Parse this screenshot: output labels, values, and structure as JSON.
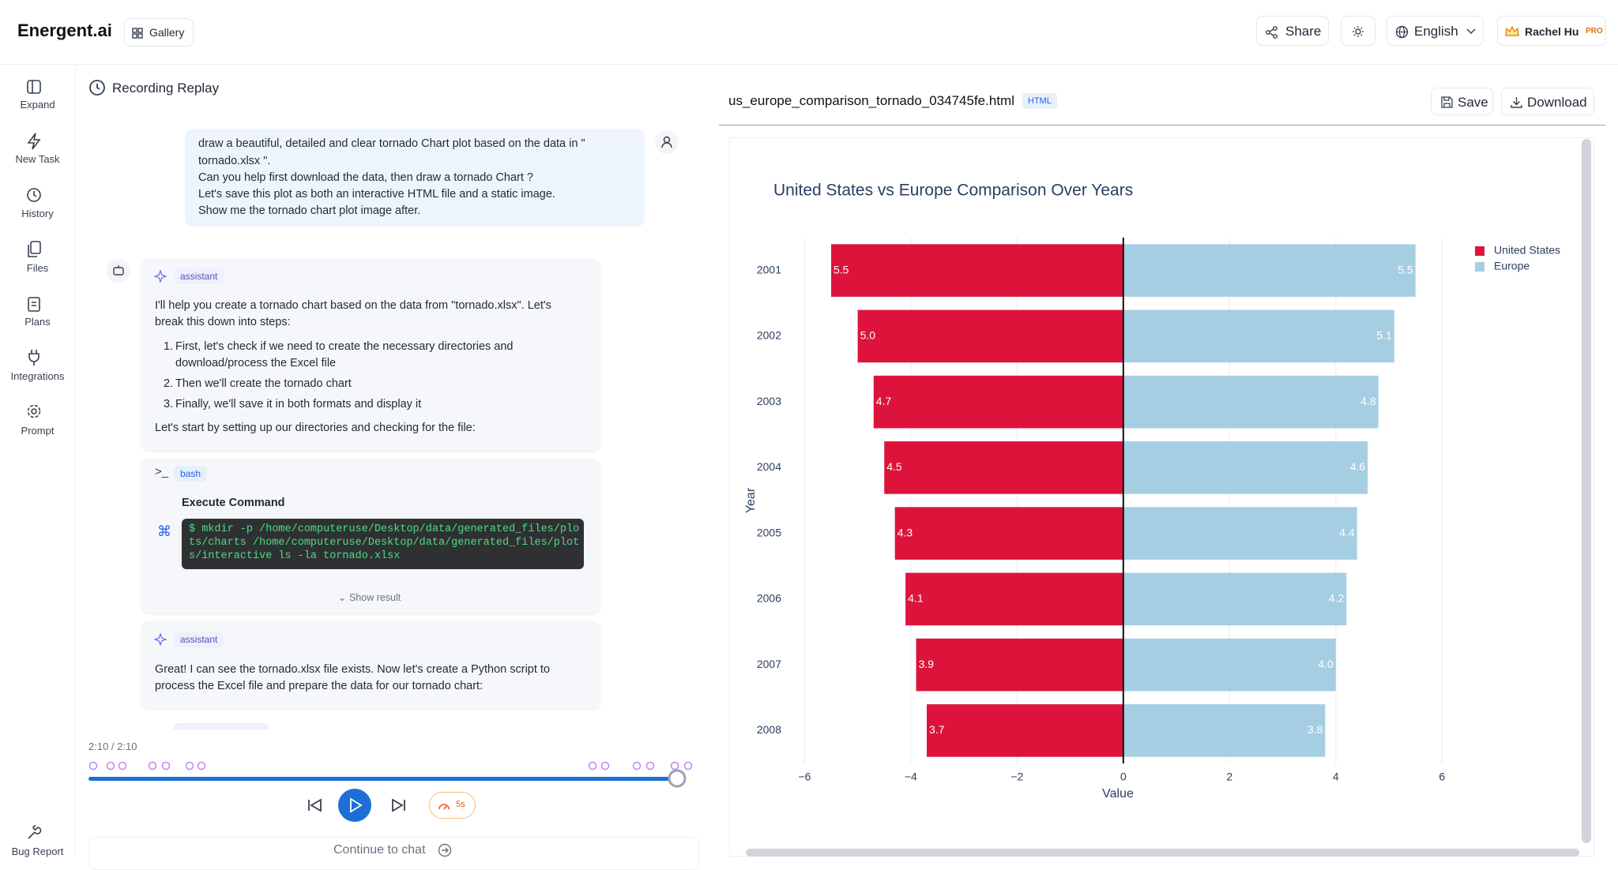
{
  "header": {
    "brand": "Energent.ai",
    "gallery": "Gallery",
    "share": "Share",
    "language": "English",
    "user": "Rachel Hu",
    "badge": "PRO"
  },
  "sidebar": {
    "items": [
      "Expand",
      "New Task",
      "History",
      "Files",
      "Plans",
      "Integrations",
      "Prompt"
    ],
    "bug_report": "Bug Report"
  },
  "replay": {
    "title": "Recording Replay",
    "user_message": [
      "draw a beautiful, detailed and clear tornado Chart plot based on the data in \"",
      "tornado.xlsx \".",
      "Can you help first download the data, then draw a tornado Chart ?",
      "Let's save this plot as both an interactive HTML file and a static image.",
      "Show me the tornado chart plot image after."
    ],
    "assistant_1": {
      "tag": "assistant",
      "intro": [
        "I'll help you create a tornado chart based on the data from \"tornado.xlsx\". Let's",
        "break this down into steps:"
      ],
      "steps": [
        [
          "1.",
          "First, let's check if we need to create the necessary directories and"
        ],
        [
          "",
          "download/process the Excel file"
        ],
        [
          "2.",
          "Then we'll create the tornado chart"
        ],
        [
          "3.",
          "Finally, we'll save it in both formats and display it"
        ]
      ],
      "outro": "Let's start by setting up our directories and checking for the file:"
    },
    "tool": {
      "tag": "bash",
      "title": "Execute Command",
      "command": [
        "$ mkdir -p /home/computeruse/Desktop/data/generated_files/plo",
        "ts/charts /home/computeruse/Desktop/data/generated_files/plot",
        "s/interactive ls -la tornado.xlsx"
      ],
      "toggle": "Show result"
    },
    "assistant_2": {
      "tag": "assistant",
      "text": [
        "Great! I can see the tornado.xlsx file exists. Now let's create a Python script to",
        "process the Excel file and prepare the data for our tornado chart:"
      ]
    },
    "time": "2:10 / 2:10",
    "speed": "5s",
    "continue": "Continue to chat"
  },
  "file": {
    "name": "us_europe_comparison_tornado_034745fe.html",
    "kind": "HTML",
    "save": "Save",
    "download": "Download"
  },
  "chart_data": {
    "type": "bar",
    "orientation": "horizontal",
    "title": "United States vs Europe Comparison Over Years",
    "x_label": "Value",
    "y_label": "Year",
    "categories": [
      "2001",
      "2002",
      "2003",
      "2004",
      "2005",
      "2006",
      "2007",
      "2008"
    ],
    "series": [
      {
        "name": "United States",
        "color": "#dc143c",
        "values": [
          -5.5,
          -5.0,
          -4.7,
          -4.5,
          -4.3,
          -4.1,
          -3.9,
          -3.7
        ],
        "value_labels": [
          "5.5",
          "5.0",
          "4.7",
          "4.5",
          "4.3",
          "4.1",
          "3.9",
          "3.7"
        ]
      },
      {
        "name": "Europe",
        "color": "#a6cee3",
        "values": [
          5.5,
          5.1,
          4.8,
          4.6,
          4.4,
          4.2,
          4.0,
          3.8
        ],
        "value_labels": [
          "5.5",
          "5.1",
          "4.8",
          "4.6",
          "4.4",
          "4.2",
          "4.0",
          "3.8"
        ]
      }
    ],
    "xlim": [
      -6.08,
      6.04
    ],
    "xticks": [
      {
        "value": -6,
        "label": "−6"
      },
      {
        "value": -4,
        "label": "−4"
      },
      {
        "value": -2,
        "label": "−2"
      },
      0,
      2,
      4,
      6
    ],
    "grid": true,
    "legend": "right"
  }
}
